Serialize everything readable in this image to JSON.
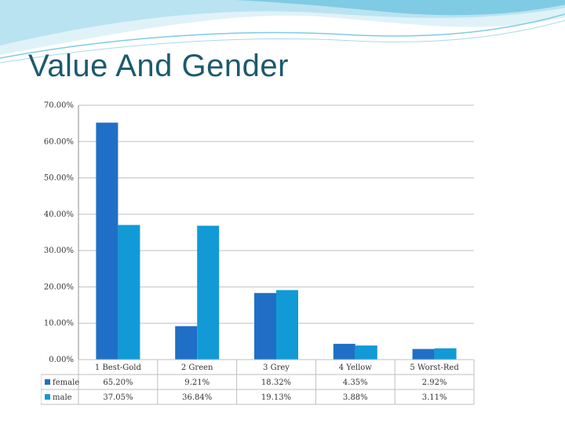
{
  "slide": {
    "title": "Value And Gender"
  },
  "colors": {
    "female": "#1f6fc6",
    "male": "#119ad6",
    "title": "#1c5a6e",
    "grid": "#bfbfbf"
  },
  "chart_data": {
    "type": "bar",
    "categories": [
      "1 Best-Gold",
      "2 Green",
      "3 Grey",
      "4 Yellow",
      "5 Worst-Red"
    ],
    "series": [
      {
        "name": "female",
        "values": [
          65.2,
          9.21,
          18.32,
          4.35,
          2.92
        ],
        "labels": [
          "65.20%",
          "9.21%",
          "18.32%",
          "4.35%",
          "2.92%"
        ]
      },
      {
        "name": "male",
        "values": [
          37.05,
          36.84,
          19.13,
          3.88,
          3.11
        ],
        "labels": [
          "37.05%",
          "36.84%",
          "19.13%",
          "3.88%",
          "3.11%"
        ]
      }
    ],
    "yticks": [
      "0.00%",
      "10.00%",
      "20.00%",
      "30.00%",
      "40.00%",
      "50.00%",
      "60.00%",
      "70.00%"
    ],
    "ylim": [
      0,
      70
    ],
    "grid": true,
    "legend": "data-table"
  }
}
